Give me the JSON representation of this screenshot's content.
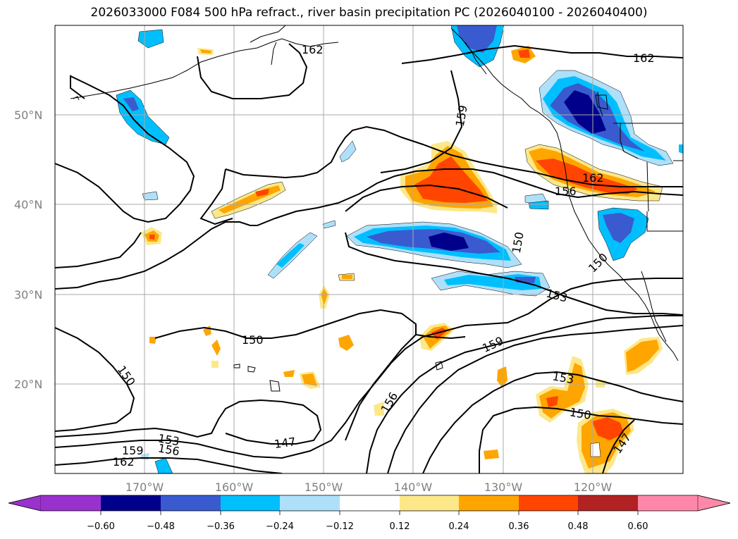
{
  "title": "2026033000 F084 500 hPa refract., river basin precipitation PC (2026040100 - 2026040400)",
  "map": {
    "lat_labels": [
      "50°N",
      "40°N",
      "30°N",
      "20°N"
    ],
    "lon_labels": [
      "170°W",
      "160°W",
      "150°W",
      "140°W",
      "130°W",
      "120°W"
    ],
    "contour_labels": [
      "162",
      "162",
      "159",
      "162",
      "156",
      "150",
      "150",
      "153",
      "159",
      "150",
      "150",
      "156",
      "153",
      "150",
      "153",
      "156",
      "159",
      "162",
      "147",
      "147"
    ]
  },
  "colorbar": {
    "ticks": [
      "−0.60",
      "−0.48",
      "−0.36",
      "−0.24",
      "−0.12",
      "0.12",
      "0.24",
      "0.36",
      "0.48",
      "0.60"
    ],
    "colors": [
      "#9932cc",
      "#00008b",
      "#3a5bcf",
      "#00bfff",
      "#aee0fa",
      "#ffffff",
      "#fce889",
      "#ffa500",
      "#ff4500",
      "#b22222",
      "#ff88aa"
    ]
  },
  "palette": {
    "strong_neg": "#00008b",
    "mid_neg": "#3a5bcf",
    "neg": "#00bfff",
    "weak_neg": "#aee0fa",
    "weak_pos": "#fce889",
    "pos": "#ffa500",
    "mid_pos": "#ff4500"
  }
}
